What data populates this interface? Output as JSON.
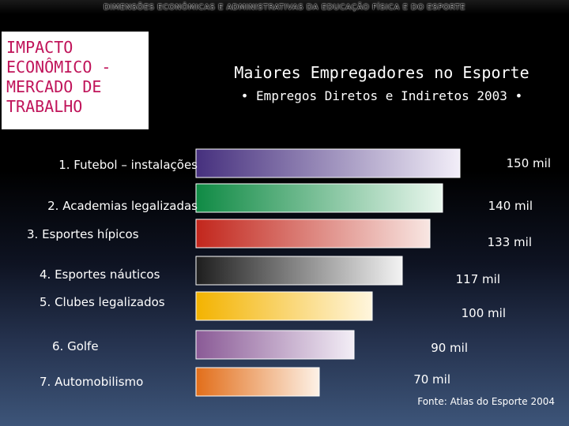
{
  "banner": "DIMENSÕES ECONÔMICAS E ADMINISTRATIVAS DA EDUCAÇÃO FÍSICA E DO ESPORTE",
  "title_box": [
    "IMPACTO",
    "ECONÔMICO -",
    "MERCADO DE",
    "TRABALHO"
  ],
  "source": "Fonte: Atlas do Esporte 2004",
  "chart_data": {
    "type": "bar",
    "orientation": "horizontal",
    "title": "Maiores Empregadores no Esporte",
    "subtitle": "• Empregos Diretos e Indiretos 2003 •",
    "categories": [
      "1. Futebol – instalações",
      "2. Academias legalizadas",
      "3. Esportes hípicos",
      "4. Esportes náuticos",
      "5. Clubes legalizados",
      "6. Golfe",
      "7. Automobilismo"
    ],
    "values": [
      150,
      140,
      133,
      117,
      100,
      90,
      70
    ],
    "value_labels": [
      "150 mil",
      "140 mil",
      "133 mil",
      "117 mil",
      "100 mil",
      "90 mil",
      "70 mil"
    ],
    "unit": "mil",
    "xlim": [
      0,
      150
    ],
    "bar_colors": [
      [
        "#46307e",
        "#f2eef8"
      ],
      [
        "#0f8a44",
        "#eaf7ee"
      ],
      [
        "#c2261c",
        "#f8e6e2"
      ],
      [
        "#1e1e1e",
        "#f3f3f3"
      ],
      [
        "#f3b300",
        "#fff6de"
      ],
      [
        "#8a5a96",
        "#f3eef6"
      ],
      [
        "#e26e1a",
        "#fdf1e6"
      ]
    ]
  }
}
